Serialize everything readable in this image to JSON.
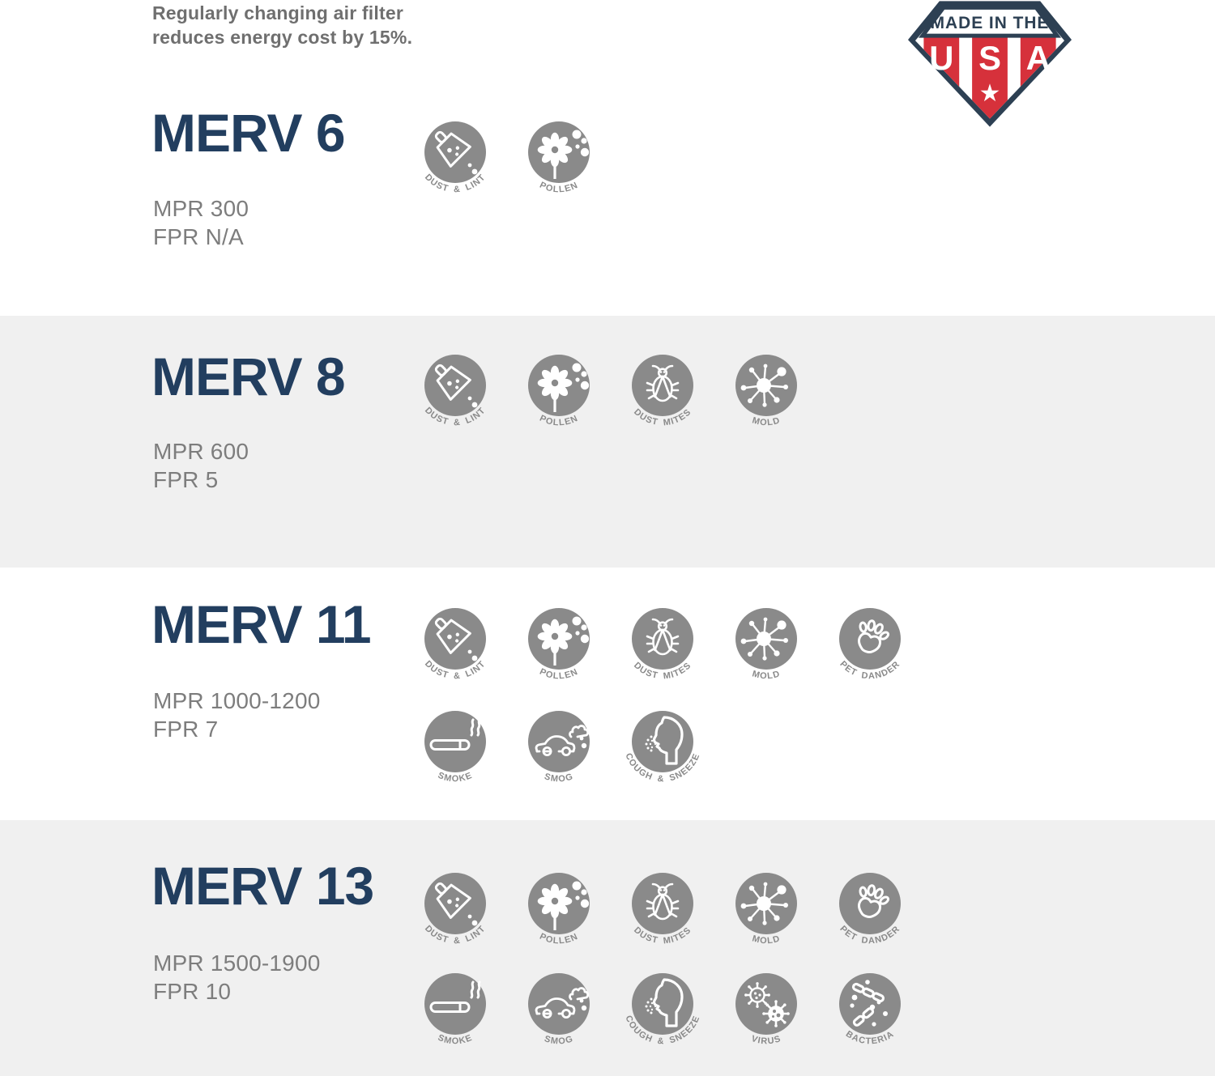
{
  "page": {
    "note_line1": "Regularly changing air filter",
    "note_line2": "reduces energy cost by 15%."
  },
  "badge": {
    "banner": "MADE IN THE",
    "letters": [
      "U",
      "S",
      "A"
    ],
    "star": "★"
  },
  "colors": {
    "heading_navy": "#223e5f",
    "spec_gray": "#7d7d7d",
    "note_gray": "#6f6f6f",
    "icon_gray": "#8a8a8a",
    "band_gray": "#f0f0f0",
    "badge_navy": "#2d4053",
    "badge_red": "#d6313b"
  },
  "sections": [
    {
      "title": "MERV 6",
      "mpr": "MPR 300",
      "fpr": "FPR N/A",
      "icon_rows": [
        [
          {
            "type": "dust-lint",
            "label": "DUST & LINT"
          },
          {
            "type": "pollen",
            "label": "POLLEN"
          }
        ]
      ]
    },
    {
      "title": "MERV 8",
      "mpr": "MPR 600",
      "fpr": "FPR 5",
      "icon_rows": [
        [
          {
            "type": "dust-lint",
            "label": "DUST & LINT"
          },
          {
            "type": "pollen",
            "label": "POLLEN"
          },
          {
            "type": "dust-mites",
            "label": "DUST MITES"
          },
          {
            "type": "mold",
            "label": "MOLD"
          }
        ]
      ]
    },
    {
      "title": "MERV 11",
      "mpr": "MPR 1000-1200",
      "fpr": "FPR 7",
      "icon_rows": [
        [
          {
            "type": "dust-lint",
            "label": "DUST & LINT"
          },
          {
            "type": "pollen",
            "label": "POLLEN"
          },
          {
            "type": "dust-mites",
            "label": "DUST MITES"
          },
          {
            "type": "mold",
            "label": "MOLD"
          },
          {
            "type": "pet-dander",
            "label": "PET DANDER"
          }
        ],
        [
          {
            "type": "smoke",
            "label": "SMOKE"
          },
          {
            "type": "smog",
            "label": "SMOG"
          },
          {
            "type": "cough-sneeze",
            "label": "COUGH & SNEEZE"
          }
        ]
      ]
    },
    {
      "title": "MERV 13",
      "mpr": "MPR 1500-1900",
      "fpr": "FPR 10",
      "icon_rows": [
        [
          {
            "type": "dust-lint",
            "label": "DUST & LINT"
          },
          {
            "type": "pollen",
            "label": "POLLEN"
          },
          {
            "type": "dust-mites",
            "label": "DUST MITES"
          },
          {
            "type": "mold",
            "label": "MOLD"
          },
          {
            "type": "pet-dander",
            "label": "PET DANDER"
          }
        ],
        [
          {
            "type": "smoke",
            "label": "SMOKE"
          },
          {
            "type": "smog",
            "label": "SMOG"
          },
          {
            "type": "cough-sneeze",
            "label": "COUGH & SNEEZE"
          },
          {
            "type": "virus",
            "label": "VIRUS"
          },
          {
            "type": "bacteria",
            "label": "BACTERIA"
          }
        ]
      ]
    }
  ]
}
